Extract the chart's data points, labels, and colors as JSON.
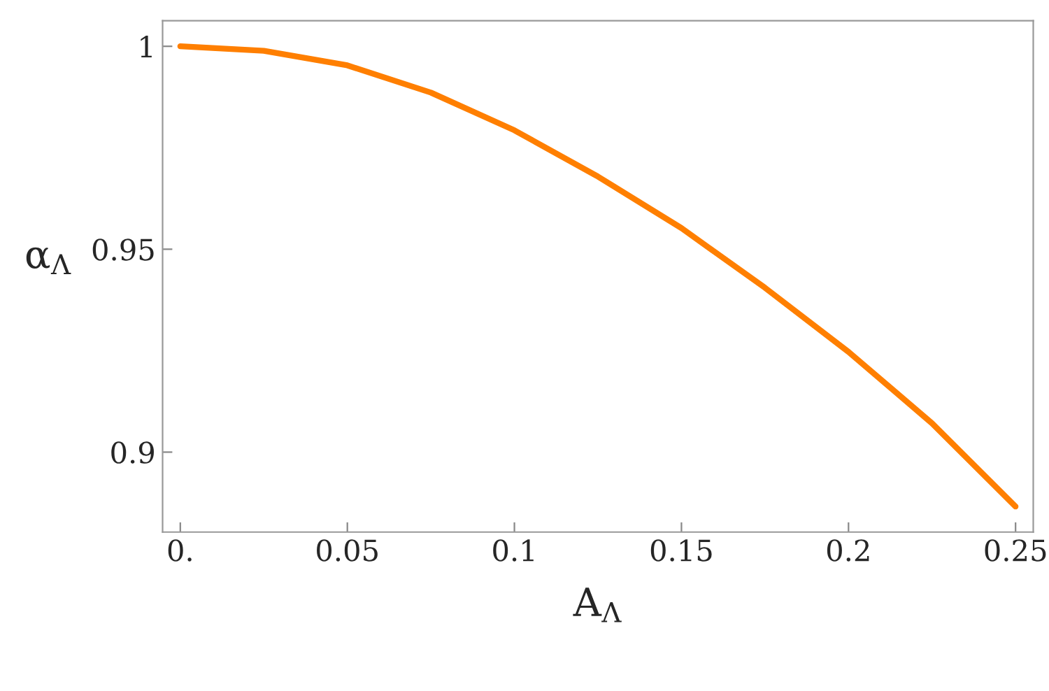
{
  "chart_data": {
    "type": "line",
    "xlabel": "A$_{Λ}$",
    "ylabel": "α$_{Λ}$",
    "x": [
      0,
      0.025,
      0.05,
      0.075,
      0.1,
      0.125,
      0.15,
      0.175,
      0.2,
      0.225,
      0.25
    ],
    "series": [
      {
        "color": "#ff7f00",
        "values": [
          1.0,
          0.9989,
          0.9953,
          0.9886,
          0.9793,
          0.9679,
          0.9552,
          0.9405,
          0.9247,
          0.9071,
          0.8866
        ]
      }
    ],
    "xlim": [
      -0.0053,
      0.2553
    ],
    "ylim": [
      0.8803,
      1.0063
    ],
    "xticks": [
      {
        "value": 0,
        "label": "0."
      },
      0.05,
      0.1,
      0.15,
      0.2,
      0.25
    ],
    "yticks": [
      0.9,
      0.95,
      {
        "value": 1,
        "label": "1"
      }
    ],
    "grid": false,
    "legend": false,
    "marker": "none",
    "line_style": "solid"
  }
}
